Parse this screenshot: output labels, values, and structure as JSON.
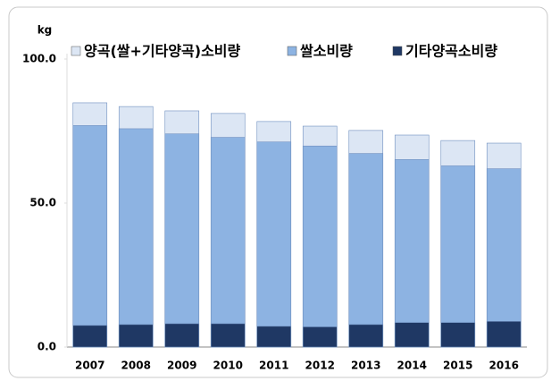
{
  "chart_data": {
    "type": "bar",
    "y_unit": "kg",
    "categories": [
      "2007",
      "2008",
      "2009",
      "2010",
      "2011",
      "2012",
      "2013",
      "2014",
      "2015",
      "2016"
    ],
    "series": [
      {
        "name": "양곡(쌀+기타양곡)소비량",
        "color": "#dce6f4",
        "values": [
          84.8,
          83.5,
          82.0,
          81.1,
          78.3,
          76.7,
          75.2,
          73.6,
          71.7,
          70.8
        ]
      },
      {
        "name": "쌀소비량",
        "color": "#8db3e2",
        "values": [
          76.9,
          75.8,
          74.0,
          72.8,
          71.2,
          69.8,
          67.2,
          65.1,
          62.9,
          61.9
        ]
      },
      {
        "name": "기타양곡소비량",
        "color": "#1f3864",
        "values": [
          7.5,
          7.8,
          8.1,
          8.1,
          7.2,
          7.0,
          7.8,
          8.5,
          8.5,
          8.9
        ]
      }
    ],
    "ylim": [
      0,
      100
    ],
    "yticks": [
      {
        "value": 0,
        "label": "0.0"
      },
      {
        "value": 50,
        "label": "50.0"
      },
      {
        "value": 100,
        "label": "100.0"
      }
    ]
  }
}
